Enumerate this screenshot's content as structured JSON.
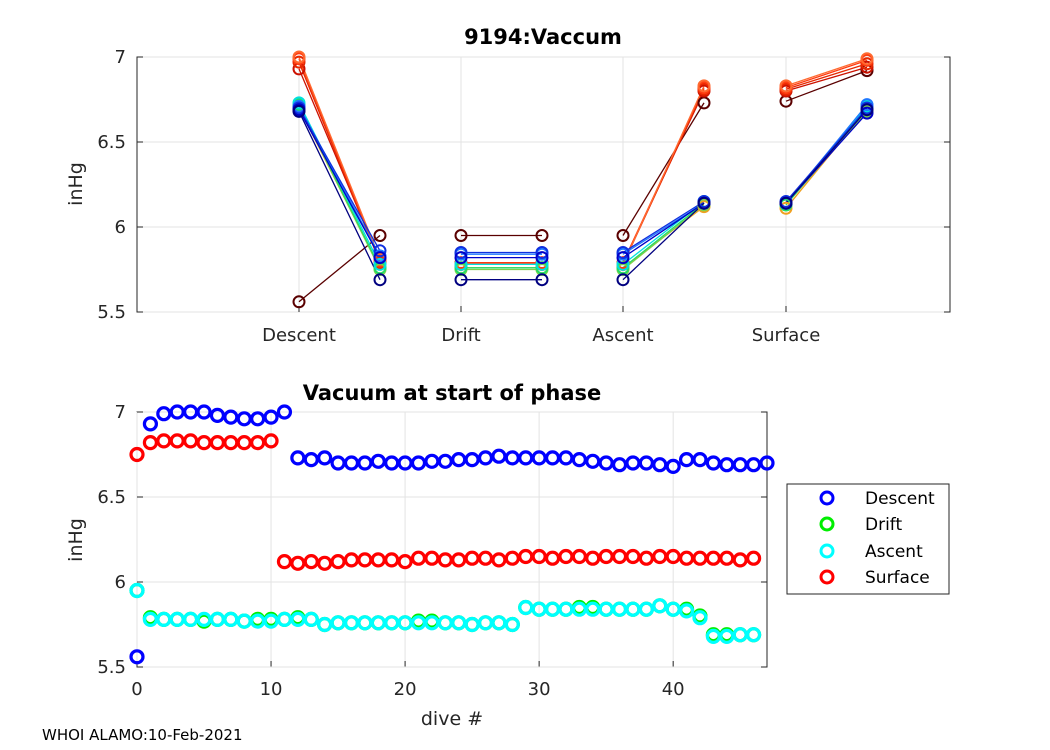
{
  "chart_data": [
    {
      "type": "line",
      "title": "9194:Vaccum",
      "ylabel": "inHg",
      "xlabel": "",
      "ylim": [
        5.5,
        7
      ],
      "yticks": [
        "5.5",
        "6",
        "6.5",
        "7"
      ],
      "phases": [
        "Descent",
        "Drift",
        "Ascent",
        "Surface"
      ],
      "grid": true,
      "series": [
        {
          "color": "#5a0000",
          "values": [
            5.56,
            5.95,
            5.95,
            5.95,
            5.95,
            6.73,
            6.74,
            6.92
          ]
        },
        {
          "color": "#cc1100",
          "values": [
            6.93,
            5.8,
            5.79,
            5.79,
            5.79,
            6.8,
            6.8,
            6.94
          ]
        },
        {
          "color": "#e62800",
          "values": [
            6.97,
            5.79,
            5.78,
            5.78,
            5.78,
            6.81,
            6.81,
            6.96
          ]
        },
        {
          "color": "#ff3b10",
          "values": [
            6.99,
            5.8,
            5.79,
            5.79,
            5.79,
            6.82,
            6.82,
            6.98
          ]
        },
        {
          "color": "#ff6a30",
          "values": [
            7.0,
            5.81,
            5.78,
            5.78,
            5.78,
            6.83,
            6.83,
            6.99
          ]
        },
        {
          "color": "#f0a020",
          "values": [
            6.7,
            5.76,
            5.76,
            5.76,
            5.76,
            6.12,
            6.11,
            6.69
          ]
        },
        {
          "color": "#7fd04a",
          "values": [
            6.71,
            5.75,
            5.75,
            5.75,
            5.75,
            6.13,
            6.13,
            6.68
          ]
        },
        {
          "color": "#22dd66",
          "values": [
            6.72,
            5.76,
            5.76,
            5.76,
            5.76,
            6.14,
            6.13,
            6.7
          ]
        },
        {
          "color": "#00e0e0",
          "values": [
            6.73,
            5.78,
            5.78,
            5.78,
            5.78,
            6.15,
            6.14,
            6.71
          ]
        },
        {
          "color": "#1e78ff",
          "values": [
            6.71,
            5.83,
            5.84,
            5.84,
            5.84,
            6.14,
            6.14,
            6.72
          ]
        },
        {
          "color": "#1030e0",
          "values": [
            6.7,
            5.86,
            5.85,
            5.85,
            5.85,
            6.15,
            6.15,
            6.7
          ]
        },
        {
          "color": "#0000c8",
          "values": [
            6.69,
            5.82,
            5.82,
            5.82,
            5.82,
            6.14,
            6.14,
            6.67
          ]
        },
        {
          "color": "#000080",
          "values": [
            6.68,
            5.69,
            5.69,
            5.69,
            5.69,
            6.14,
            6.14,
            6.69
          ]
        }
      ]
    },
    {
      "type": "scatter",
      "title": "Vacuum at start of phase",
      "xlabel": "dive #",
      "ylabel": "inHg",
      "xlim": [
        0,
        47
      ],
      "ylim": [
        5.5,
        7
      ],
      "xticks": [
        "0",
        "10",
        "20",
        "30",
        "40"
      ],
      "yticks": [
        "5.5",
        "6",
        "6.5",
        "7"
      ],
      "grid": true,
      "legend_position": "outside-right",
      "series": [
        {
          "name": "Descent",
          "color": "#0000ff",
          "values": [
            5.56,
            6.93,
            6.99,
            7.0,
            7.0,
            7.0,
            6.98,
            6.97,
            6.96,
            6.96,
            6.97,
            7.0,
            6.73,
            6.72,
            6.73,
            6.7,
            6.7,
            6.7,
            6.71,
            6.7,
            6.7,
            6.7,
            6.71,
            6.71,
            6.72,
            6.72,
            6.73,
            6.74,
            6.73,
            6.73,
            6.73,
            6.73,
            6.73,
            6.72,
            6.71,
            6.7,
            6.69,
            6.7,
            6.7,
            6.69,
            6.68,
            6.72,
            6.72,
            6.7,
            6.69,
            6.69,
            6.69,
            6.7
          ]
        },
        {
          "name": "Drift",
          "color": "#00ee00",
          "values": [
            5.95,
            5.79,
            5.78,
            5.78,
            5.78,
            5.77,
            5.78,
            5.78,
            5.77,
            5.78,
            5.78,
            5.78,
            5.79,
            5.78,
            5.75,
            5.76,
            5.76,
            5.76,
            5.76,
            5.76,
            5.76,
            5.77,
            5.77,
            5.76,
            5.76,
            5.75,
            5.76,
            5.76,
            5.75,
            5.85,
            5.84,
            5.84,
            5.84,
            5.85,
            5.85,
            5.84,
            5.84,
            5.84,
            5.84,
            5.86,
            5.84,
            5.84,
            5.8,
            5.69,
            5.69,
            5.69,
            5.69
          ]
        },
        {
          "name": "Ascent",
          "color": "#00ffff",
          "values": [
            5.95,
            5.78,
            5.78,
            5.78,
            5.78,
            5.78,
            5.78,
            5.78,
            5.77,
            5.77,
            5.77,
            5.78,
            5.78,
            5.78,
            5.75,
            5.76,
            5.76,
            5.76,
            5.76,
            5.76,
            5.76,
            5.76,
            5.76,
            5.76,
            5.76,
            5.75,
            5.76,
            5.76,
            5.75,
            5.85,
            5.84,
            5.84,
            5.84,
            5.84,
            5.84,
            5.84,
            5.84,
            5.84,
            5.84,
            5.86,
            5.84,
            5.83,
            5.79,
            5.68,
            5.68,
            5.69,
            5.69
          ]
        },
        {
          "name": "Surface",
          "color": "#ff0000",
          "values": [
            6.75,
            6.82,
            6.83,
            6.83,
            6.83,
            6.82,
            6.82,
            6.82,
            6.82,
            6.82,
            6.83,
            6.12,
            6.11,
            6.12,
            6.11,
            6.12,
            6.13,
            6.13,
            6.13,
            6.13,
            6.12,
            6.14,
            6.14,
            6.13,
            6.13,
            6.14,
            6.14,
            6.13,
            6.14,
            6.15,
            6.15,
            6.14,
            6.15,
            6.15,
            6.14,
            6.15,
            6.15,
            6.15,
            6.14,
            6.15,
            6.15,
            6.14,
            6.14,
            6.14,
            6.14,
            6.13,
            6.14
          ]
        }
      ]
    }
  ],
  "footer": "WHOI ALAMO:10-Feb-2021"
}
